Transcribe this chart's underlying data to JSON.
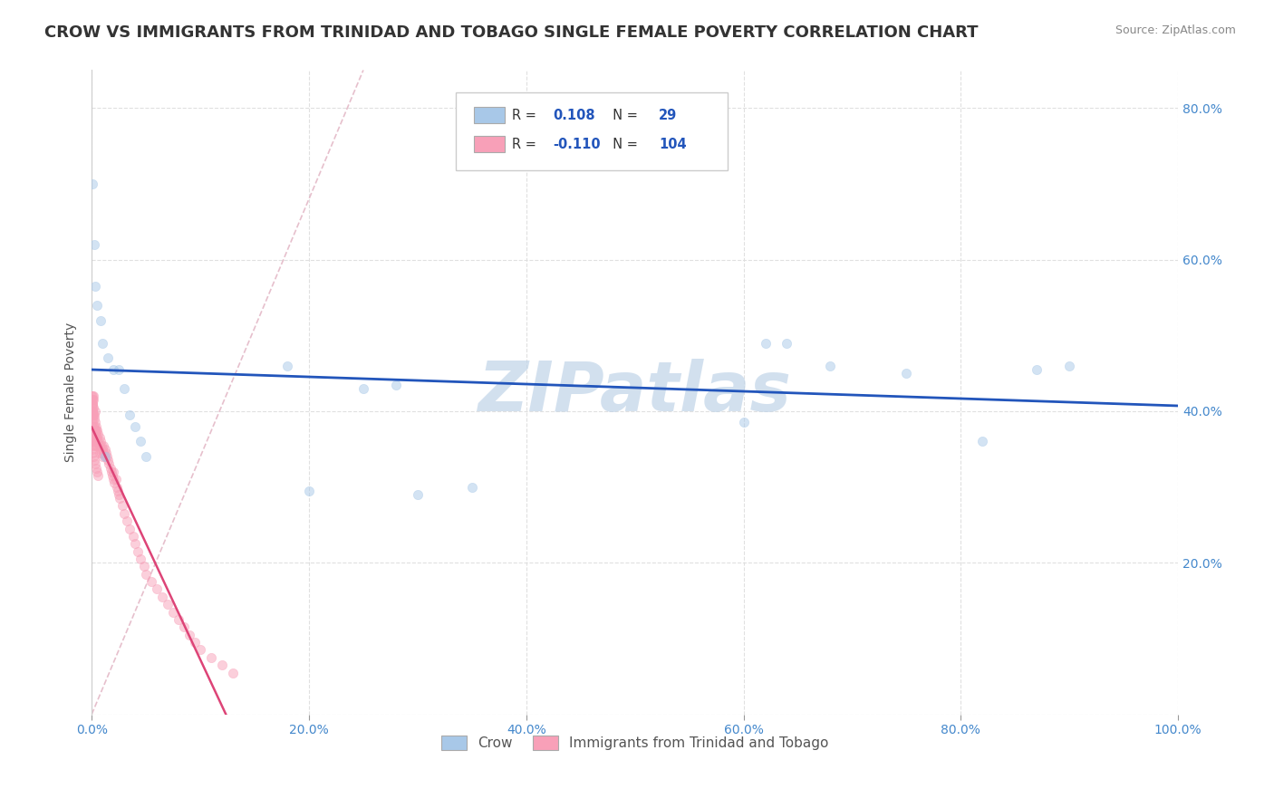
{
  "title": "CROW VS IMMIGRANTS FROM TRINIDAD AND TOBAGO SINGLE FEMALE POVERTY CORRELATION CHART",
  "source": "Source: ZipAtlas.com",
  "ylabel": "Single Female Poverty",
  "legend_labels": [
    "Crow",
    "Immigrants from Trinidad and Tobago"
  ],
  "crow_R": "0.108",
  "crow_N": "29",
  "tt_R": "-0.110",
  "tt_N": "104",
  "crow_color": "#a8c8e8",
  "tt_color": "#f8a0b8",
  "crow_line_color": "#2255bb",
  "tt_line_color": "#dd4477",
  "diagonal_color": "#e0b0c0",
  "background_color": "#ffffff",
  "legend_R_color": "#2255bb",
  "legend_N_color": "#2255bb",
  "crow_scatter_x": [
    0.001,
    0.002,
    0.005,
    0.008,
    0.01,
    0.015,
    0.02,
    0.025,
    0.03,
    0.035,
    0.04,
    0.045,
    0.05,
    0.18,
    0.2,
    0.25,
    0.28,
    0.62,
    0.64,
    0.68,
    0.75,
    0.82,
    0.87,
    0.9,
    0.003,
    0.012,
    0.3,
    0.35,
    0.6
  ],
  "crow_scatter_y": [
    0.7,
    0.62,
    0.54,
    0.52,
    0.49,
    0.47,
    0.455,
    0.455,
    0.43,
    0.395,
    0.38,
    0.36,
    0.34,
    0.46,
    0.295,
    0.43,
    0.435,
    0.49,
    0.49,
    0.46,
    0.45,
    0.36,
    0.455,
    0.46,
    0.565,
    0.34,
    0.29,
    0.3,
    0.385
  ],
  "tt_scatter_x": [
    0.0002,
    0.0003,
    0.0004,
    0.0005,
    0.0005,
    0.0006,
    0.0007,
    0.0008,
    0.0009,
    0.001,
    0.001,
    0.001,
    0.001,
    0.001,
    0.001,
    0.0012,
    0.0012,
    0.0015,
    0.0015,
    0.002,
    0.002,
    0.002,
    0.002,
    0.002,
    0.003,
    0.003,
    0.003,
    0.003,
    0.003,
    0.003,
    0.004,
    0.004,
    0.004,
    0.004,
    0.005,
    0.005,
    0.005,
    0.006,
    0.006,
    0.007,
    0.007,
    0.007,
    0.008,
    0.008,
    0.009,
    0.009,
    0.01,
    0.01,
    0.011,
    0.011,
    0.012,
    0.012,
    0.013,
    0.014,
    0.015,
    0.016,
    0.017,
    0.018,
    0.019,
    0.02,
    0.02,
    0.021,
    0.022,
    0.023,
    0.024,
    0.025,
    0.026,
    0.028,
    0.03,
    0.032,
    0.035,
    0.038,
    0.04,
    0.042,
    0.045,
    0.048,
    0.05,
    0.055,
    0.06,
    0.065,
    0.07,
    0.075,
    0.08,
    0.085,
    0.09,
    0.095,
    0.1,
    0.11,
    0.12,
    0.13,
    0.0003,
    0.0004,
    0.0005,
    0.0006,
    0.0007,
    0.0008,
    0.0009,
    0.001,
    0.0015,
    0.002,
    0.003,
    0.004,
    0.005,
    0.006
  ],
  "tt_scatter_y": [
    0.42,
    0.41,
    0.4,
    0.395,
    0.415,
    0.405,
    0.41,
    0.4,
    0.395,
    0.42,
    0.415,
    0.39,
    0.41,
    0.385,
    0.4,
    0.395,
    0.405,
    0.42,
    0.415,
    0.395,
    0.38,
    0.36,
    0.37,
    0.39,
    0.4,
    0.385,
    0.375,
    0.365,
    0.355,
    0.37,
    0.38,
    0.37,
    0.36,
    0.375,
    0.355,
    0.365,
    0.375,
    0.36,
    0.37,
    0.355,
    0.345,
    0.365,
    0.35,
    0.36,
    0.345,
    0.355,
    0.35,
    0.34,
    0.345,
    0.355,
    0.34,
    0.35,
    0.345,
    0.34,
    0.335,
    0.33,
    0.325,
    0.32,
    0.315,
    0.31,
    0.32,
    0.305,
    0.31,
    0.3,
    0.295,
    0.29,
    0.285,
    0.275,
    0.265,
    0.255,
    0.245,
    0.235,
    0.225,
    0.215,
    0.205,
    0.195,
    0.185,
    0.175,
    0.165,
    0.155,
    0.145,
    0.135,
    0.125,
    0.115,
    0.105,
    0.095,
    0.085,
    0.075,
    0.065,
    0.055,
    0.38,
    0.375,
    0.37,
    0.365,
    0.36,
    0.355,
    0.35,
    0.345,
    0.34,
    0.335,
    0.33,
    0.325,
    0.32,
    0.315
  ],
  "xlim": [
    0.0,
    1.0
  ],
  "ylim": [
    0.0,
    0.85
  ],
  "x_ticks": [
    0.0,
    0.2,
    0.4,
    0.6,
    0.8,
    1.0
  ],
  "x_tick_labels": [
    "0.0%",
    "20.0%",
    "40.0%",
    "60.0%",
    "80.0%",
    "100.0%"
  ],
  "y_ticks": [
    0.0,
    0.2,
    0.4,
    0.6,
    0.8
  ],
  "y_tick_labels": [
    "",
    "20.0%",
    "40.0%",
    "60.0%",
    "80.0%"
  ],
  "grid_color": "#dddddd",
  "title_fontsize": 13,
  "axis_label_fontsize": 10,
  "tick_fontsize": 10,
  "scatter_size": 55,
  "scatter_alpha": 0.5,
  "watermark_text": "ZIPatlas",
  "watermark_color": "#c0d4e8",
  "watermark_fontsize": 55
}
